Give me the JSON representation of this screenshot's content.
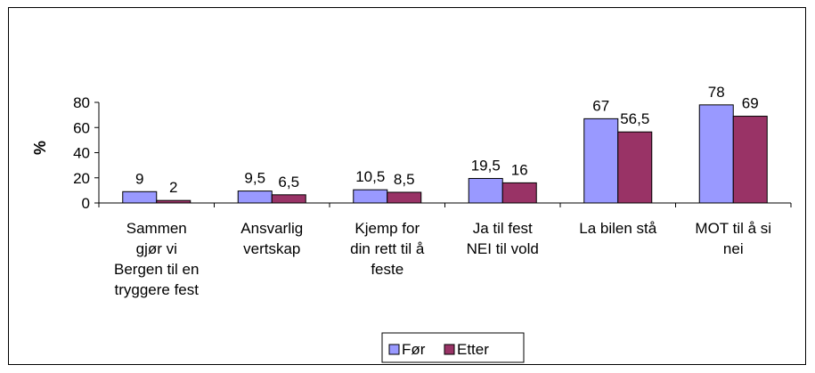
{
  "chart_data": {
    "type": "bar",
    "title": "",
    "xlabel": "",
    "ylabel": "%",
    "ylim": [
      0,
      80
    ],
    "yticks": [
      0,
      20,
      40,
      60,
      80
    ],
    "categories": [
      "Sammen gjør vi Bergen til en tryggere fest",
      "Ansvarlig vertskap",
      "Kjemp for din rett til å feste",
      "Ja til fest NEI til vold",
      "La bilen stå",
      "MOT til å si nei"
    ],
    "category_lines": [
      [
        "Sammen",
        "gjør vi",
        "Bergen til en",
        "tryggere fest"
      ],
      [
        "Ansvarlig",
        "vertskap"
      ],
      [
        "Kjemp for",
        "din rett til å",
        "feste"
      ],
      [
        "Ja til fest",
        "NEI til vold"
      ],
      [
        "La bilen stå"
      ],
      [
        "MOT til å si",
        "nei"
      ]
    ],
    "series": [
      {
        "name": "Før",
        "values": [
          9,
          9.5,
          10.5,
          19.5,
          67,
          78
        ],
        "labels": [
          "9",
          "9,5",
          "10,5",
          "19,5",
          "67",
          "78"
        ],
        "color": "#9999FF"
      },
      {
        "name": "Etter",
        "values": [
          2,
          6.5,
          8.5,
          16,
          56.5,
          69
        ],
        "labels": [
          "2",
          "6,5",
          "8,5",
          "16",
          "56,5",
          "69"
        ],
        "color": "#993366"
      }
    ],
    "grid": false,
    "legend_position": "bottom"
  }
}
